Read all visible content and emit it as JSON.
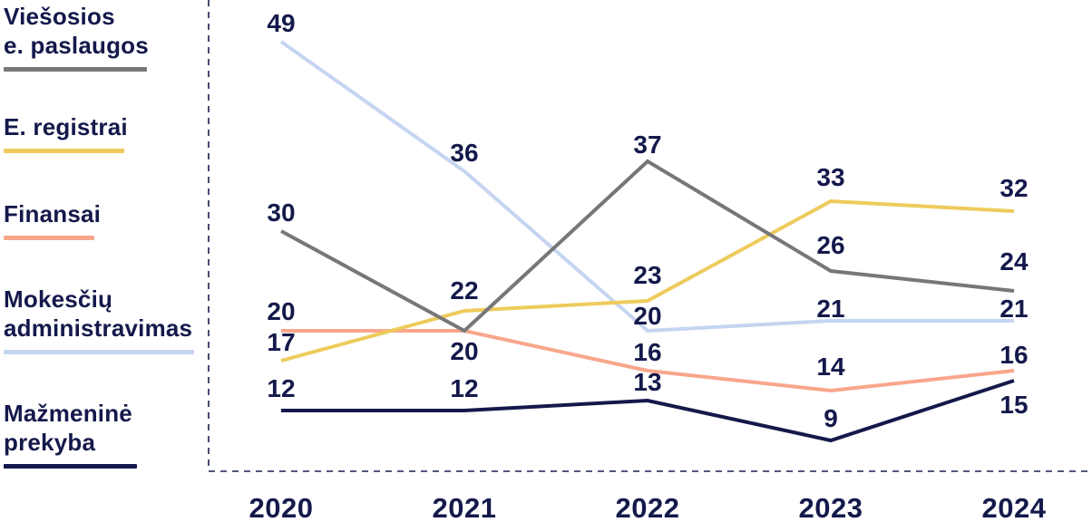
{
  "colors": {
    "text": "#14194B",
    "axis_dash": "#1A2150",
    "background": "#FFFFFF"
  },
  "legend": {
    "items": [
      {
        "lines": [
          "Viešosios",
          "e. paslaugos"
        ],
        "swatch_color": "#77777A"
      },
      {
        "lines": [
          "E. registrai"
        ],
        "swatch_color": "#EDCB5C"
      },
      {
        "lines": [
          "Finansai"
        ],
        "swatch_color": "#F8A68C"
      },
      {
        "lines": [
          "Mokesčių",
          "administravimas"
        ],
        "swatch_color": "#C5D5F1"
      },
      {
        "lines": [
          "Mažmeninė",
          "prekyba"
        ],
        "swatch_color": "#14194B"
      }
    ]
  },
  "chart_data": {
    "type": "line",
    "x": [
      "2020",
      "2021",
      "2022",
      "2023",
      "2024"
    ],
    "series": [
      {
        "name": "Viešosios e. paslaugos",
        "color": "#77777A",
        "values": [
          30,
          20,
          37,
          26,
          24
        ],
        "labels": [
          "30",
          "20",
          "37",
          "26",
          "24"
        ]
      },
      {
        "name": "E. registrai",
        "color": "#EDCB5C",
        "values": [
          17,
          22,
          23,
          33,
          32
        ],
        "labels": [
          "17",
          "22",
          "23",
          "33",
          "32"
        ]
      },
      {
        "name": "Finansai",
        "color": "#F8A68C",
        "values": [
          20,
          20,
          16,
          14,
          16
        ],
        "labels": [
          "20",
          null,
          "16",
          "14",
          "16"
        ]
      },
      {
        "name": "Mokesčių administravimas",
        "color": "#C5D5F1",
        "values": [
          49,
          36,
          20,
          21,
          21
        ],
        "labels": [
          "49",
          "36",
          "20",
          "21",
          "21"
        ]
      },
      {
        "name": "Mažmeninė prekyba",
        "color": "#14194B",
        "values": [
          12,
          12,
          13,
          9,
          15
        ],
        "labels": [
          "12",
          "12",
          "13",
          "9",
          "15"
        ]
      }
    ],
    "title": "",
    "xlabel": "",
    "ylabel": "",
    "ylim": [
      6,
      53
    ],
    "grid": false,
    "legend_position": "left",
    "data_labels": true
  }
}
